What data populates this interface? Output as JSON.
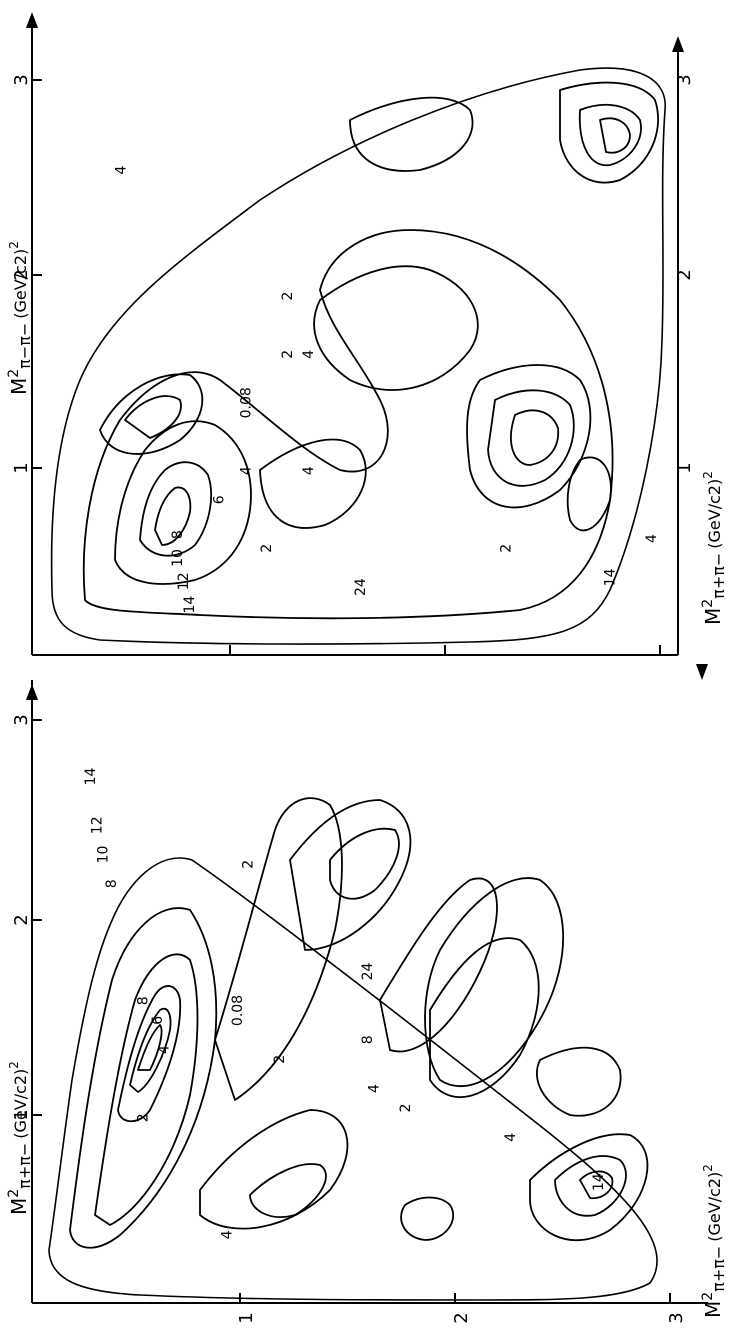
{
  "chart_data": [
    {
      "type": "contour",
      "panel": "lower",
      "xlabel_main": "M",
      "xlabel_sup": "2",
      "xlabel_sub": "π+π−",
      "xlabel_unit": "(GeV/c2)",
      "xlabel_unit_sup": "2",
      "ylabel_main": "M",
      "ylabel_sup": "2",
      "ylabel_sub": "π+π−",
      "ylabel_unit": "(GeV/c2)",
      "ylabel_unit_sup": "2",
      "xticks": [
        "1",
        "2",
        "3"
      ],
      "yticks": [
        "1",
        "2",
        "3"
      ],
      "xlim": [
        0,
        3.2
      ],
      "ylim": [
        0,
        3.2
      ],
      "contour_labels": [
        {
          "text": "14",
          "x": 0.3,
          "y": 2.7
        },
        {
          "text": "12",
          "x": 0.33,
          "y": 2.45
        },
        {
          "text": "10",
          "x": 0.36,
          "y": 2.3
        },
        {
          "text": "8",
          "x": 0.4,
          "y": 2.15
        },
        {
          "text": "8",
          "x": 0.55,
          "y": 1.55
        },
        {
          "text": "6",
          "x": 0.62,
          "y": 1.45
        },
        {
          "text": "4",
          "x": 0.65,
          "y": 1.3
        },
        {
          "text": "2",
          "x": 0.55,
          "y": 0.95
        },
        {
          "text": "2",
          "x": 1.05,
          "y": 2.25
        },
        {
          "text": "2",
          "x": 1.2,
          "y": 1.25
        },
        {
          "text": "0.08",
          "x": 1.0,
          "y": 1.5
        },
        {
          "text": "24",
          "x": 1.62,
          "y": 1.7
        },
        {
          "text": "8",
          "x": 1.62,
          "y": 1.35
        },
        {
          "text": "4",
          "x": 1.65,
          "y": 1.1
        },
        {
          "text": "2",
          "x": 1.8,
          "y": 1.0
        },
        {
          "text": "4",
          "x": 2.3,
          "y": 0.85
        },
        {
          "text": "14",
          "x": 2.72,
          "y": 0.62
        },
        {
          "text": "4",
          "x": 0.95,
          "y": 0.35
        }
      ]
    },
    {
      "type": "contour",
      "panel": "upper",
      "xlabel_main": "M",
      "xlabel_sup": "2",
      "xlabel_sub": "π+π−",
      "xlabel_unit": "(GeV/c2)",
      "xlabel_unit_sup": "2",
      "ylabel_main": "M",
      "ylabel_sup": "2",
      "ylabel_sub": "π−π−",
      "ylabel_unit": "(GeV/c2)",
      "ylabel_unit_sup": "2",
      "xticks": [
        "1",
        "2",
        "3"
      ],
      "yticks": [
        "1",
        "2",
        "3"
      ],
      "xlim": [
        0,
        3.2
      ],
      "ylim": [
        0,
        3.2
      ],
      "contour_labels": [
        {
          "text": "4",
          "x": 0.45,
          "y": 2.5
        },
        {
          "text": "2",
          "x": 1.25,
          "y": 1.85
        },
        {
          "text": "2",
          "x": 1.25,
          "y": 1.55
        },
        {
          "text": "0.08",
          "x": 1.05,
          "y": 1.3
        },
        {
          "text": "4",
          "x": 1.05,
          "y": 0.95
        },
        {
          "text": "6",
          "x": 0.92,
          "y": 0.8
        },
        {
          "text": "8",
          "x": 0.72,
          "y": 0.62
        },
        {
          "text": "10",
          "x": 0.72,
          "y": 0.5
        },
        {
          "text": "12",
          "x": 0.75,
          "y": 0.38
        },
        {
          "text": "14",
          "x": 0.78,
          "y": 0.26
        },
        {
          "text": "4",
          "x": 1.35,
          "y": 0.95
        },
        {
          "text": "2",
          "x": 1.15,
          "y": 0.55
        },
        {
          "text": "4",
          "x": 1.35,
          "y": 1.55
        },
        {
          "text": "24",
          "x": 1.6,
          "y": 0.35
        },
        {
          "text": "2",
          "x": 2.3,
          "y": 0.55
        },
        {
          "text": "4",
          "x": 3.0,
          "y": 0.6
        },
        {
          "text": "14",
          "x": 2.8,
          "y": 0.4
        }
      ]
    }
  ]
}
